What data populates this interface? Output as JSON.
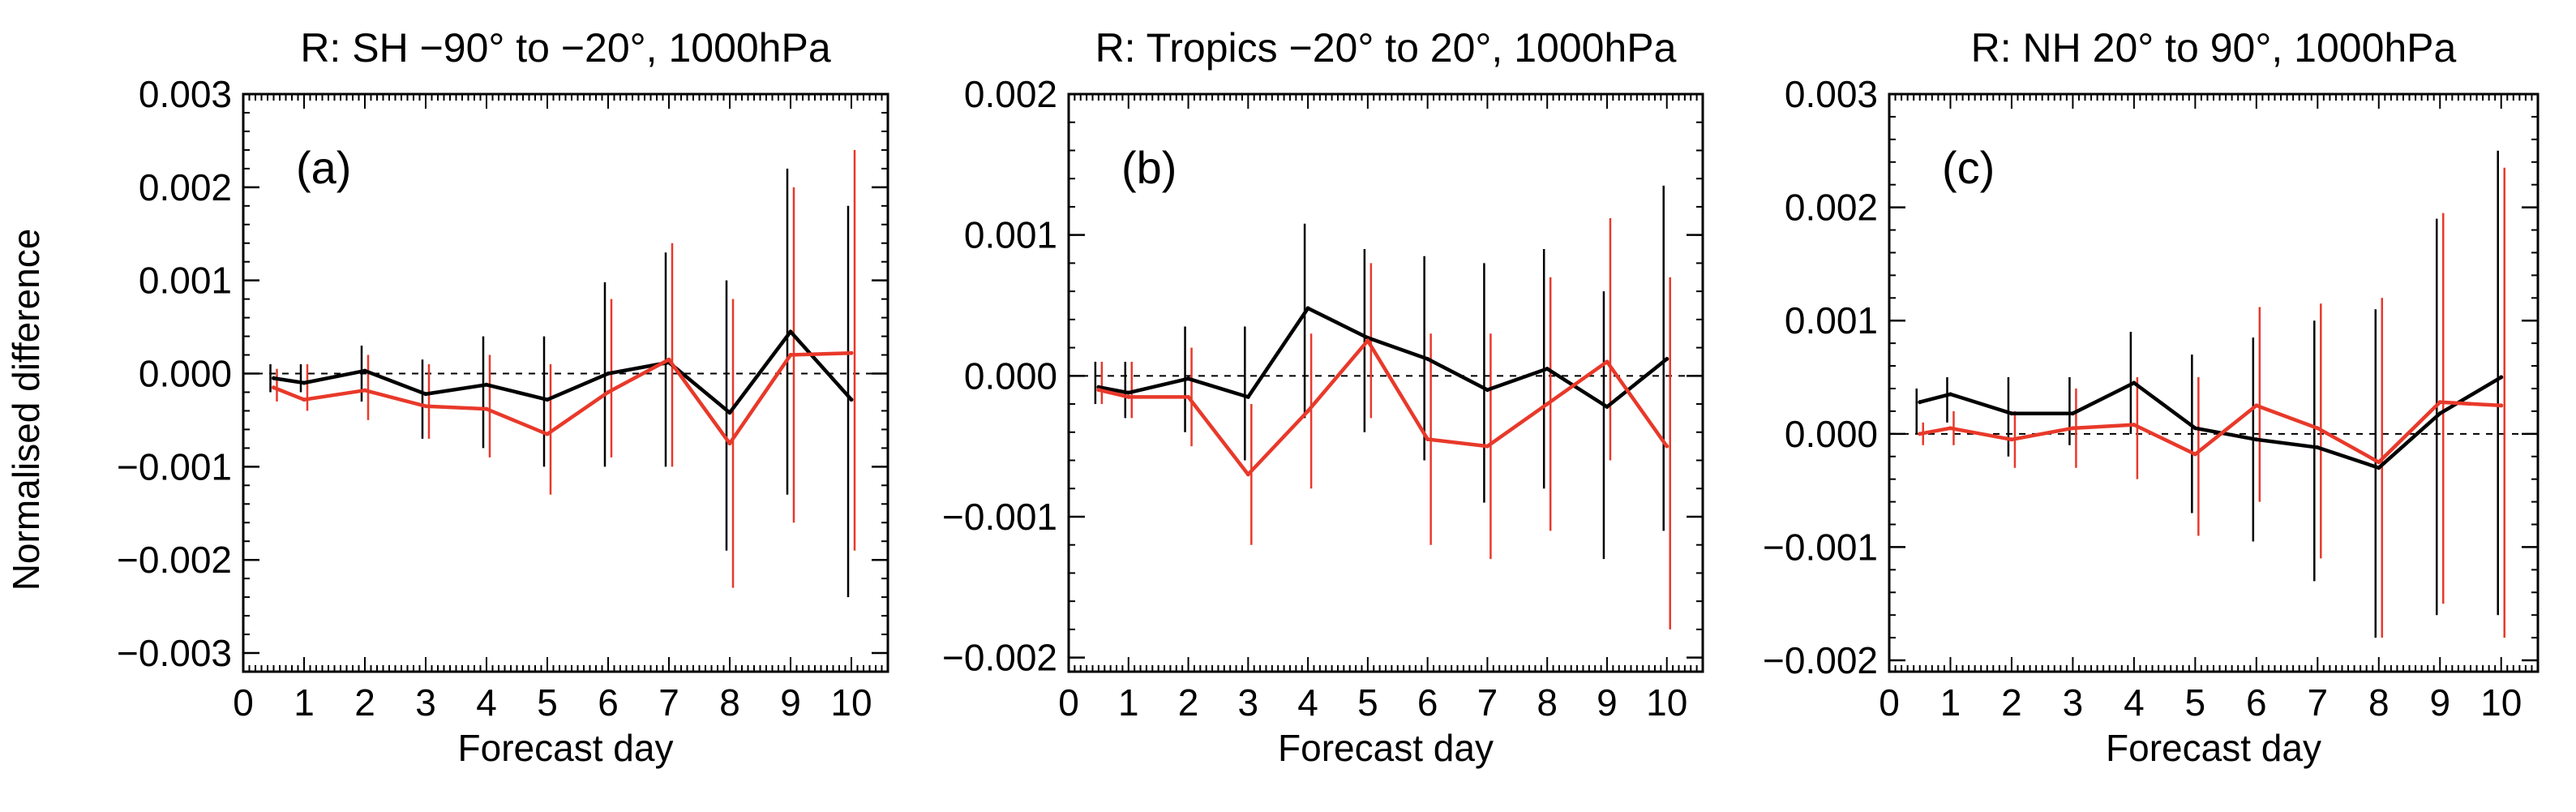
{
  "figure": {
    "ylabel": "Normalised difference",
    "line_colors": {
      "control": "#000000",
      "experiment": "#e8392a"
    }
  },
  "chart_data": [
    {
      "type": "line",
      "panel_label": "(a)",
      "title": "R: SH −90° to −20°, 1000hPa",
      "xlabel": "Forecast day",
      "ylabel": "Normalised difference",
      "xlim": [
        0,
        10.6
      ],
      "ylim": [
        -0.0032,
        0.003
      ],
      "xticks": [
        0,
        1,
        2,
        3,
        4,
        5,
        6,
        7,
        8,
        9,
        10
      ],
      "yticks": [
        -0.003,
        -0.002,
        -0.001,
        0.0,
        0.001,
        0.002,
        0.003
      ],
      "ytick_labels": [
        "−0.003",
        "−0.002",
        "−0.001",
        "0.000",
        "0.001",
        "0.002",
        "0.003"
      ],
      "zero_line": true,
      "x": [
        0.5,
        1,
        2,
        3,
        4,
        5,
        6,
        7,
        8,
        9,
        10
      ],
      "series": [
        {
          "name": "black",
          "color": "#000000",
          "values": [
            -5e-05,
            -0.0001,
            3e-05,
            -0.00022,
            -0.00012,
            -0.00028,
            0.0,
            0.00012,
            -0.00042,
            0.00045,
            -0.00028
          ],
          "err_low": [
            -0.0002,
            -0.0002,
            -0.0003,
            -0.0007,
            -0.0008,
            -0.001,
            -0.001,
            -0.001,
            -0.0019,
            -0.0013,
            -0.0024
          ],
          "err_high": [
            0.0001,
            0.0001,
            0.0003,
            0.00015,
            0.0004,
            0.0004,
            0.00098,
            0.0013,
            0.001,
            0.0022,
            0.0018
          ]
        },
        {
          "name": "red",
          "color": "#e8392a",
          "values": [
            -0.00015,
            -0.00028,
            -0.00018,
            -0.00035,
            -0.00038,
            -0.00065,
            -0.0002,
            0.00015,
            -0.00075,
            0.0002,
            0.00022
          ],
          "err_low": [
            -0.0003,
            -0.0004,
            -0.0005,
            -0.0007,
            -0.0009,
            -0.0013,
            -0.0009,
            -0.001,
            -0.0023,
            -0.0016,
            -0.0019
          ],
          "err_high": [
            5e-05,
            0.0001,
            0.0002,
            0.0001,
            0.0002,
            0.0001,
            0.0008,
            0.0014,
            0.0008,
            0.002,
            0.0024
          ]
        }
      ]
    },
    {
      "type": "line",
      "panel_label": "(b)",
      "title": "R: Tropics −20° to 20°, 1000hPa",
      "xlabel": "Forecast day",
      "ylabel": "",
      "xlim": [
        0,
        10.6
      ],
      "ylim": [
        -0.0021,
        0.002
      ],
      "xticks": [
        0,
        1,
        2,
        3,
        4,
        5,
        6,
        7,
        8,
        9,
        10
      ],
      "yticks": [
        -0.002,
        -0.001,
        0.0,
        0.001,
        0.002
      ],
      "ytick_labels": [
        "−0.002",
        "−0.001",
        "0.000",
        "0.001",
        "0.002"
      ],
      "zero_line": true,
      "x": [
        0.5,
        1,
        2,
        3,
        4,
        5,
        6,
        7,
        8,
        9,
        10
      ],
      "series": [
        {
          "name": "black",
          "color": "#000000",
          "values": [
            -8e-05,
            -0.00012,
            -2e-05,
            -0.00015,
            0.00048,
            0.00027,
            0.00012,
            -0.0001,
            5e-05,
            -0.00022,
            0.00012
          ],
          "err_low": [
            -0.0002,
            -0.0003,
            -0.0004,
            -0.0006,
            -0.0003,
            -0.0004,
            -0.0006,
            -0.0009,
            -0.0008,
            -0.0013,
            -0.0011
          ],
          "err_high": [
            0.0001,
            0.0001,
            0.00035,
            0.00035,
            0.00108,
            0.0009,
            0.00085,
            0.0008,
            0.0009,
            0.0006,
            0.00135
          ]
        },
        {
          "name": "red",
          "color": "#e8392a",
          "values": [
            -0.0001,
            -0.00015,
            -0.00015,
            -0.0007,
            -0.00025,
            0.00025,
            -0.00045,
            -0.0005,
            -0.0002,
            0.0001,
            -0.0005
          ],
          "err_low": [
            -0.0002,
            -0.0003,
            -0.0005,
            -0.0012,
            -0.0008,
            -0.0003,
            -0.0012,
            -0.0013,
            -0.0011,
            -0.0006,
            -0.0018
          ],
          "err_high": [
            0.0001,
            0.0001,
            0.0002,
            -0.0002,
            0.0003,
            0.0008,
            0.0003,
            0.0003,
            0.0007,
            0.00112,
            0.0007
          ]
        }
      ]
    },
    {
      "type": "line",
      "panel_label": "(c)",
      "title": "R: NH 20° to 90°, 1000hPa",
      "xlabel": "Forecast day",
      "ylabel": "",
      "xlim": [
        0,
        10.6
      ],
      "ylim": [
        -0.0021,
        0.003
      ],
      "xticks": [
        0,
        1,
        2,
        3,
        4,
        5,
        6,
        7,
        8,
        9,
        10
      ],
      "yticks": [
        -0.002,
        -0.001,
        0.0,
        0.001,
        0.002,
        0.003
      ],
      "ytick_labels": [
        "−0.002",
        "−0.001",
        "0.000",
        "0.001",
        "0.002",
        "0.003"
      ],
      "zero_line": true,
      "x": [
        0.5,
        1,
        2,
        3,
        4,
        5,
        6,
        7,
        8,
        9,
        10
      ],
      "series": [
        {
          "name": "black",
          "color": "#000000",
          "values": [
            0.00028,
            0.00035,
            0.00018,
            0.00018,
            0.00045,
            5e-05,
            -5e-05,
            -0.00012,
            -0.0003,
            0.00018,
            0.0005
          ],
          "err_low": [
            0.0,
            0.0001,
            -0.0002,
            -0.0001,
            0.0,
            -0.0007,
            -0.00095,
            -0.0013,
            -0.0018,
            -0.0016,
            -0.0016
          ],
          "err_high": [
            0.0004,
            0.0005,
            0.0005,
            0.0005,
            0.0009,
            0.0007,
            0.00085,
            0.001,
            0.0011,
            0.0019,
            0.0025
          ]
        },
        {
          "name": "red",
          "color": "#e8392a",
          "values": [
            0.0,
            5e-05,
            -5e-05,
            5e-05,
            8e-05,
            -0.00018,
            0.00025,
            5e-05,
            -0.00025,
            0.00028,
            0.00025
          ],
          "err_low": [
            -0.0001,
            -0.0001,
            -0.0003,
            -0.0003,
            -0.0004,
            -0.0009,
            -0.0006,
            -0.0011,
            -0.0018,
            -0.0015,
            -0.0018
          ],
          "err_high": [
            0.0001,
            0.0002,
            0.0002,
            0.0004,
            0.0005,
            0.0005,
            0.00112,
            0.00115,
            0.0012,
            0.00195,
            0.00235
          ]
        }
      ]
    }
  ]
}
